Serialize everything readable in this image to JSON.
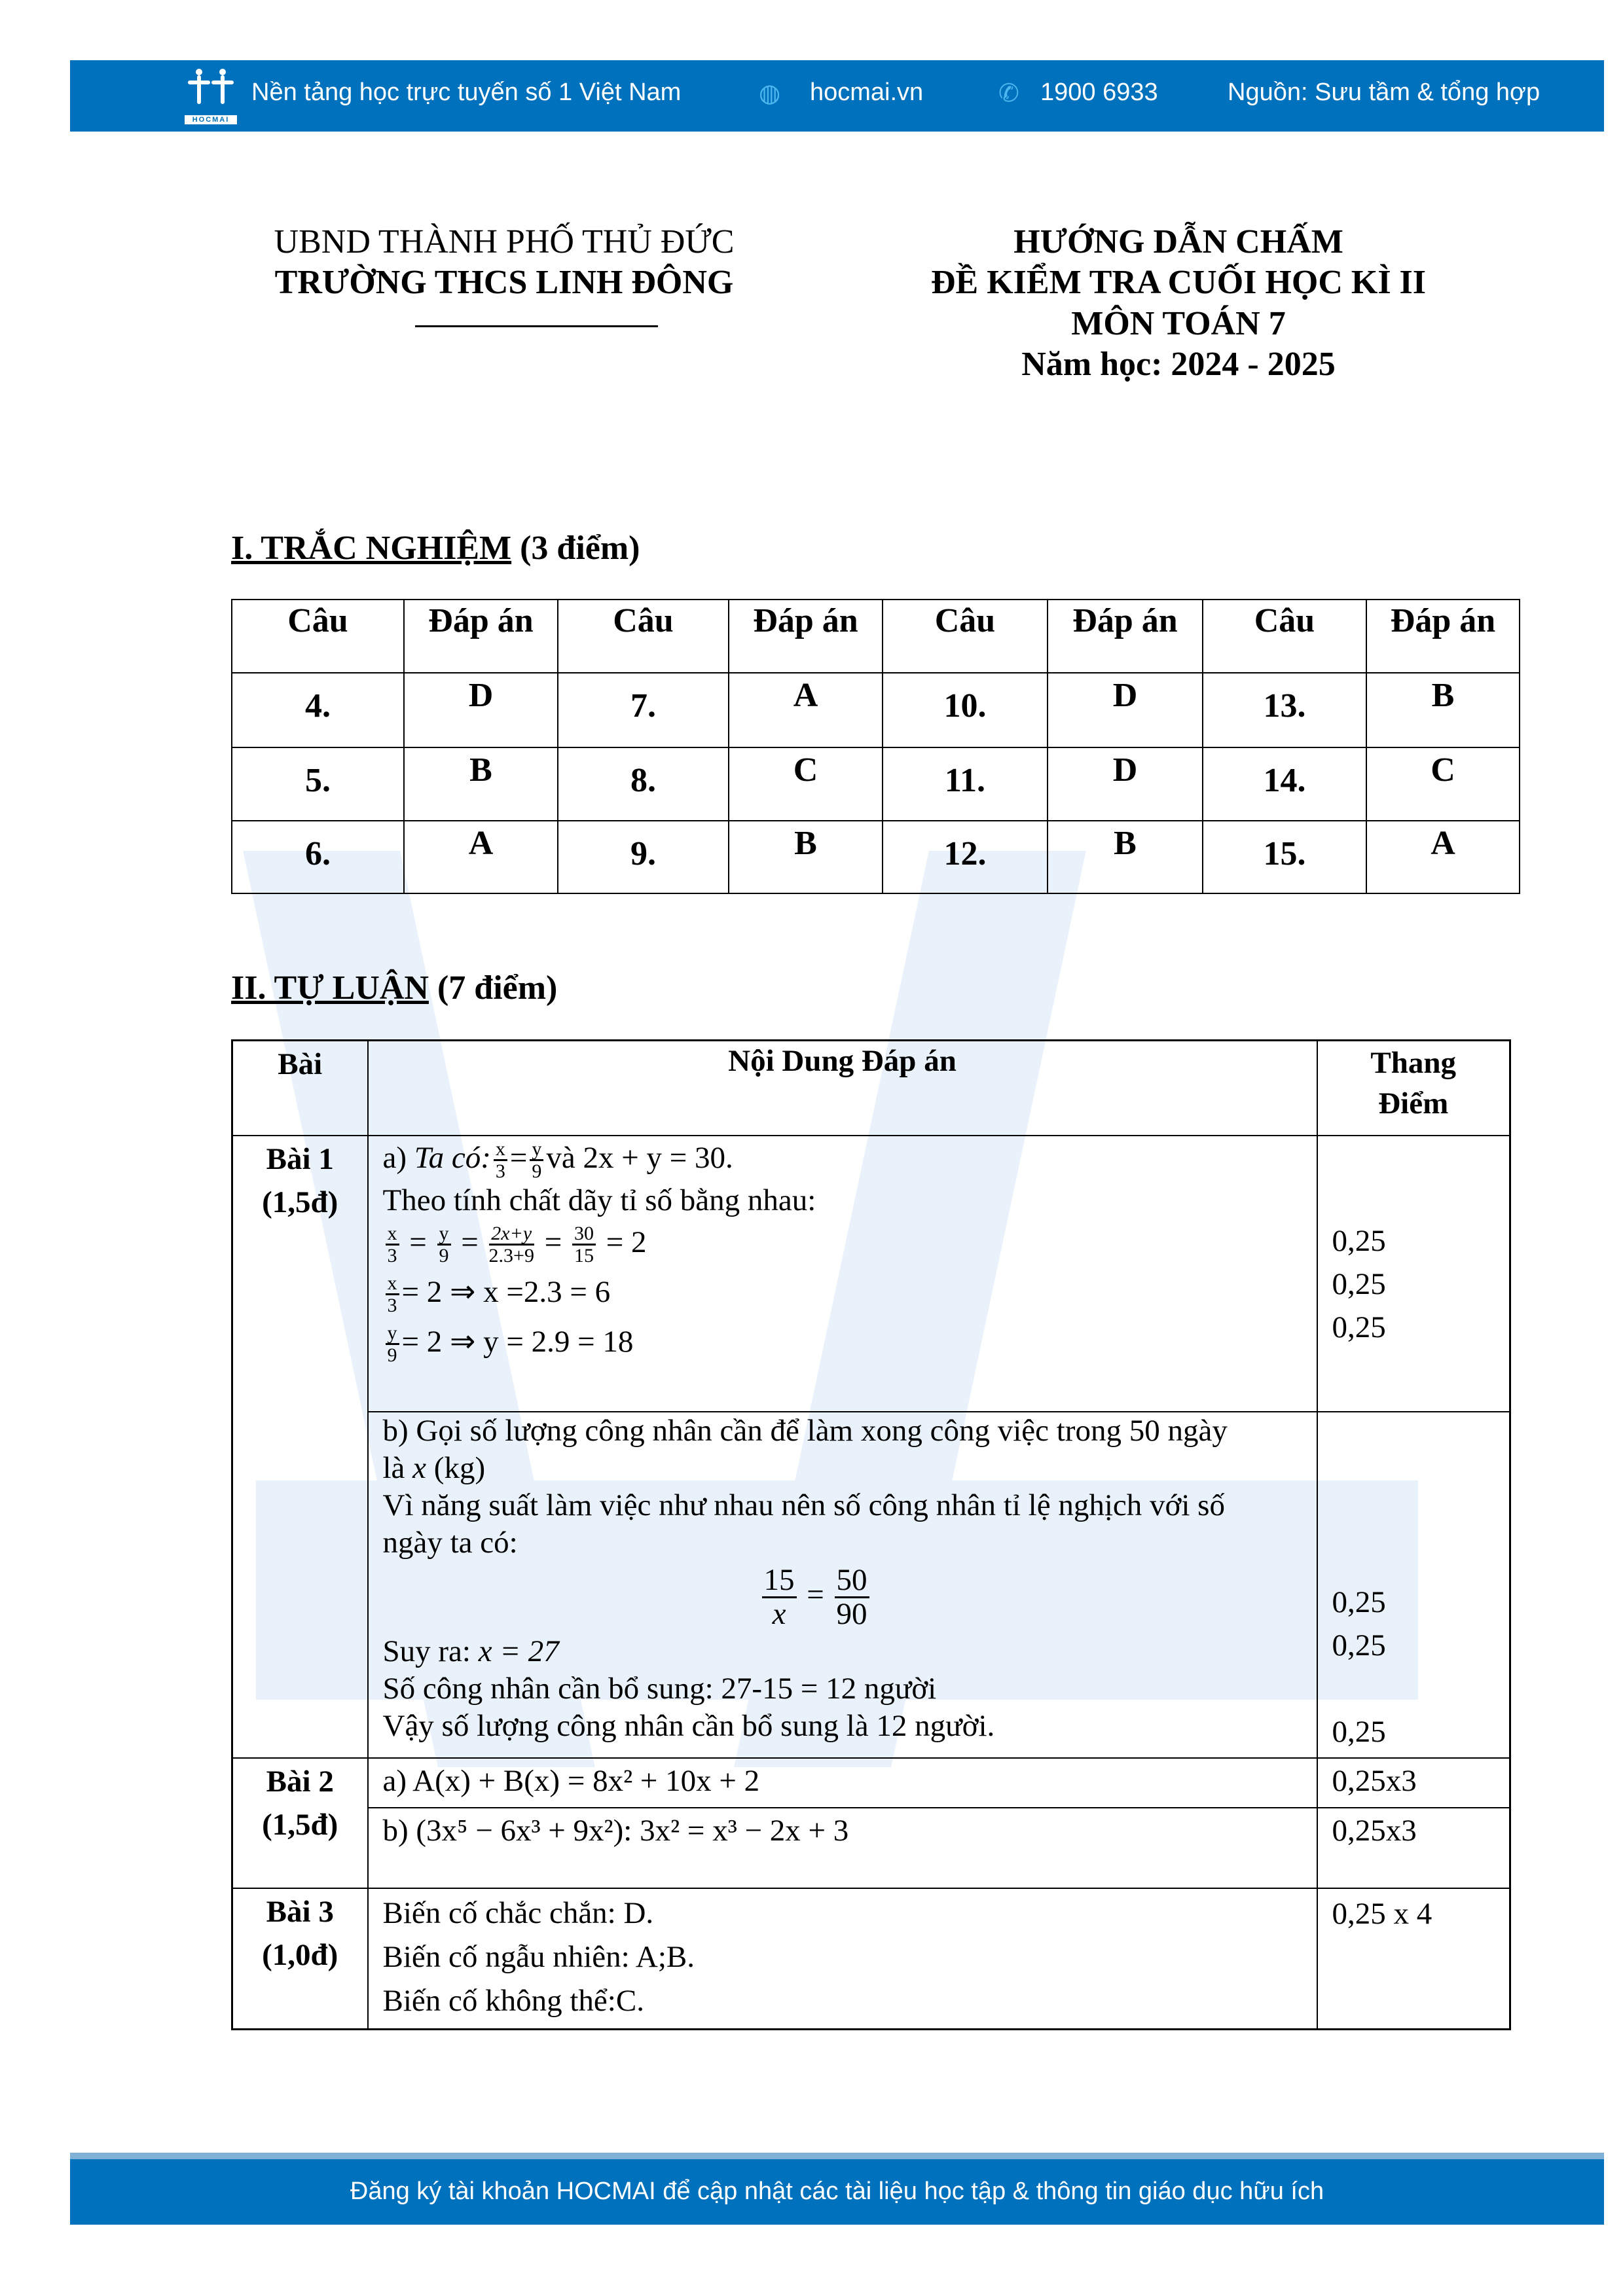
{
  "header": {
    "tagline": "Nền tảng học trực tuyến số 1 Việt Nam",
    "website": "hocmai.vn",
    "phone": "1900 6933",
    "source": "Nguồn: Sưu tầm & tổng hợp",
    "logo_text": "HOCMAI",
    "colors": {
      "brand": "#0071bc"
    }
  },
  "doc": {
    "org1": "UBND THÀNH PHỐ THỦ ĐỨC",
    "org2": "TRƯỜNG THCS LINH ĐÔNG",
    "title1": "HƯỚNG DẪN CHẤM",
    "title2": "ĐỀ KIỂM TRA CUỐI HỌC KÌ II",
    "title3": "MÔN TOÁN 7",
    "year": "Năm học: 2024 - 2025"
  },
  "section1": {
    "title": "I. TRẮC NGHIỆM",
    "points": " (3 điểm)",
    "headers": [
      "Câu",
      "Đáp án",
      "Câu",
      "Đáp án",
      "Câu",
      "Đáp án",
      "Câu",
      "Đáp án"
    ],
    "rows": [
      [
        "4.",
        "D",
        "7.",
        "A",
        "10.",
        "D",
        "13.",
        "B"
      ],
      [
        "5.",
        "B",
        "8.",
        "C",
        "11.",
        "D",
        "14.",
        "C"
      ],
      [
        "6.",
        "A",
        "9.",
        "B",
        "12.",
        "B",
        "15.",
        "A"
      ]
    ]
  },
  "section2": {
    "title": "II. TỰ LUẬN",
    "points": " (7 điểm)",
    "h_bai": "Bài",
    "h_content": "Nội Dung Đáp án",
    "h_score1": "Thang",
    "h_score2": "Điểm",
    "bai1": {
      "label": "Bài 1",
      "pts": "(1,5đ)",
      "a1": "a) ",
      "a1i": "Ta có:",
      "a1b": "và 2x + y = 30.",
      "a2": "Theo tính chất dãy tỉ số bằng nhau:",
      "f": {
        "x": "x",
        "y": "y",
        "d3": "3",
        "d9": "9",
        "n3": "2x+y",
        "d3b": "2.3+9",
        "n4": "30",
        "d4": "15",
        "eq2": "= 2"
      },
      "a4": "= 2 ⇒ x =2.3 = 6",
      "a5": "= 2 ⇒ y = 2.9 = 18",
      "b1": "b) Gọi số lượng công nhân cần để làm xong công việc trong 50 ngày",
      "b2a": "là ",
      "b2x": "x",
      "b2b": " (kg)",
      "b3": "Vì năng suất làm việc như nhau nên số công nhân tỉ lệ nghịch với số",
      "b4": "ngày ta có:",
      "bf": {
        "n1": "15",
        "d1": "x",
        "n2": "50",
        "d2": "90"
      },
      "b5a": "Suy ra: ",
      "b5b": "x = 27",
      "b6": "Số công nhân cần bổ sung: 27-15 = 12 người",
      "b7": "Vậy số lượng công nhân cần bổ sung là 12 người.",
      "scores_a": [
        "0,25",
        "0,25",
        "0,25"
      ],
      "scores_b": [
        "0,25",
        "0,25",
        "0,25"
      ]
    },
    "bai2": {
      "label": "Bài 2",
      "pts": "(1,5đ)",
      "a": "a) A(x) + B(x) = 8x² + 10x + 2",
      "b": "b)  (3x⁵  −  6x³  +  9x²): 3x²  =  x³ − 2x + 3",
      "sa": "0,25x3",
      "sb": "0,25x3"
    },
    "bai3": {
      "label": "Bài 3",
      "pts": "(1,0đ)",
      "l1": "Biến cố chắc chắn: D.",
      "l2": "Biến cố ngẫu nhiên: A;B.",
      "l3": "Biến cố không thể:C.",
      "s": "0,25 x 4"
    }
  },
  "footer": {
    "text": "Đăng ký tài khoản HOCMAI để cập nhật các tài liệu học tập & thông tin giáo dục hữu ích"
  }
}
